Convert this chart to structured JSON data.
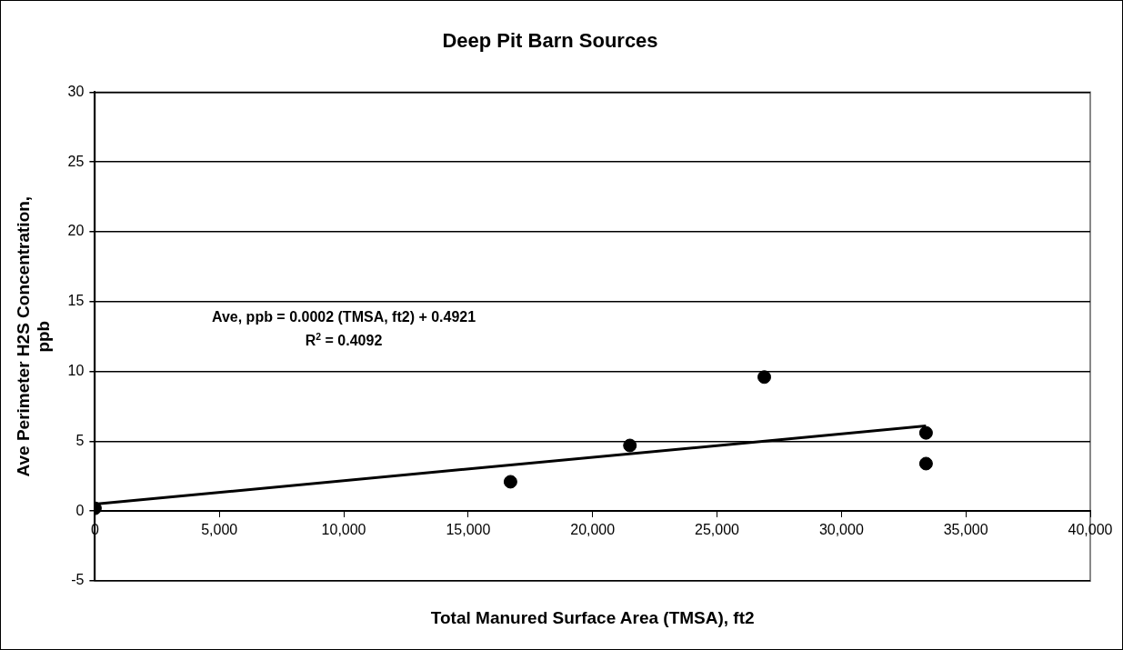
{
  "chart_data": {
    "type": "scatter",
    "title": "Deep Pit Barn Sources",
    "xlabel": "Total Manured Surface Area (TMSA), ft2",
    "ylabel": "Ave Perimeter H2S Concentration, ppb",
    "series": [
      {
        "type": "scatter",
        "color": "#000000",
        "x": [
          0,
          16700,
          21500,
          26900,
          33400,
          33400
        ],
        "values": [
          0.2,
          2.1,
          4.7,
          9.6,
          5.6,
          3.4
        ]
      },
      {
        "type": "line",
        "color": "#000000",
        "x": [
          0,
          33400
        ],
        "values": [
          0.5,
          6.1
        ],
        "marker": "none"
      }
    ],
    "xlim": [
      0,
      40000
    ],
    "xticks": [
      {
        "value": 0,
        "label": "0"
      },
      {
        "value": 5000,
        "label": "5,000"
      },
      {
        "value": 10000,
        "label": "10,000"
      },
      {
        "value": 15000,
        "label": "15,000"
      },
      {
        "value": 20000,
        "label": "20,000"
      },
      {
        "value": 25000,
        "label": "25,000"
      },
      {
        "value": 30000,
        "label": "30,000"
      },
      {
        "value": 35000,
        "label": "35,000"
      },
      {
        "value": 40000,
        "label": "40,000"
      }
    ],
    "ylim": [
      -5,
      30
    ],
    "yticks": [
      -5,
      0,
      5,
      10,
      15,
      20,
      25,
      30
    ],
    "grid": "y",
    "legend": false,
    "marker": "circle",
    "annotations": [
      "Ave, ppb = 0.0002 (TMSA, ft2) + 0.4921",
      "R$^{2}$ = 0.4092"
    ]
  }
}
